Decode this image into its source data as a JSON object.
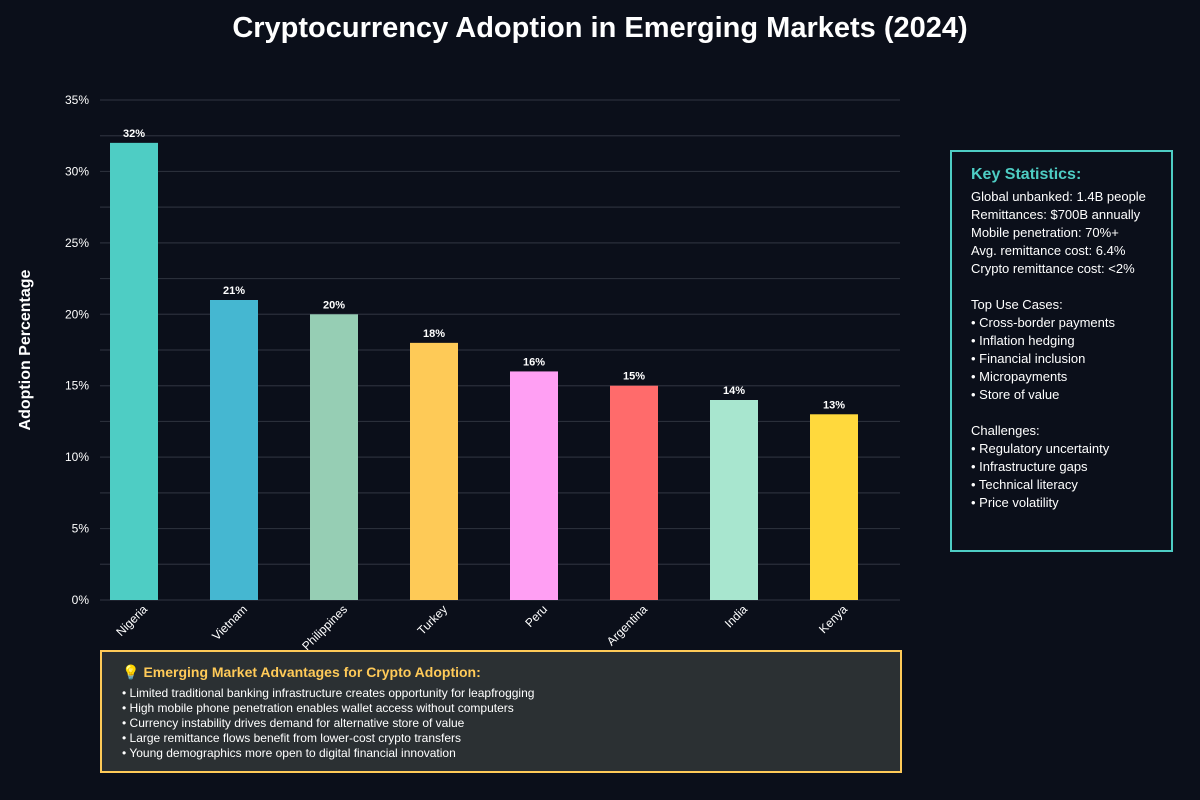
{
  "page": {
    "title": "Cryptocurrency Adoption in Emerging Markets (2024)"
  },
  "colors": {
    "background": "#0b0f1a",
    "grid": "#2a2f3a",
    "stats_accent": "#4ecdc4",
    "advantages_accent": "#ffca58",
    "advantages_bg": "#2b3033"
  },
  "chart_data": {
    "type": "bar",
    "title": "Cryptocurrency Adoption in Emerging Markets (2024)",
    "xlabel": "",
    "ylabel": "Adoption Percentage",
    "ylim": [
      0,
      35
    ],
    "yticks": [
      0,
      5,
      10,
      15,
      20,
      25,
      30,
      35
    ],
    "ytick_suffix": "%",
    "grid": true,
    "categories": [
      "Nigeria",
      "Vietnam",
      "Philippines",
      "Turkey",
      "Peru",
      "Argentina",
      "India",
      "Kenya"
    ],
    "values": [
      32,
      21,
      20,
      18,
      16,
      15,
      14,
      13
    ],
    "value_labels": [
      "32%",
      "21%",
      "20%",
      "18%",
      "16%",
      "15%",
      "14%",
      "13%"
    ],
    "bar_colors": [
      "#4ecdc4",
      "#45b7d1",
      "#96ceb4",
      "#feca57",
      "#ff9ff3",
      "#ff6b6b",
      "#a8e6cf",
      "#ffd93d"
    ]
  },
  "key_statistics": {
    "heading": "Key Statistics:",
    "stats": [
      "Global unbanked: 1.4B people",
      "Remittances: $700B annually",
      "Mobile penetration: 70%+",
      "Avg. remittance cost: 6.4%",
      "Crypto remittance cost: <2%"
    ],
    "use_cases_heading": "Top Use Cases:",
    "use_cases": [
      "• Cross-border payments",
      "• Inflation hedging",
      "• Financial inclusion",
      "• Micropayments",
      "• Store of value"
    ],
    "challenges_heading": "Challenges:",
    "challenges": [
      "• Regulatory uncertainty",
      "• Infrastructure gaps",
      "• Technical literacy",
      "• Price volatility"
    ]
  },
  "advantages": {
    "icon": "lightbulb-icon",
    "icon_glyph": "💡",
    "heading": "Emerging Market Advantages for Crypto Adoption:",
    "items": [
      "• Limited traditional banking infrastructure creates opportunity for leapfrogging",
      "• High mobile phone penetration enables wallet access without computers",
      "• Currency instability drives demand for alternative store of value",
      "• Large remittance flows benefit from lower-cost crypto transfers",
      "• Young demographics more open to digital financial innovation"
    ]
  }
}
